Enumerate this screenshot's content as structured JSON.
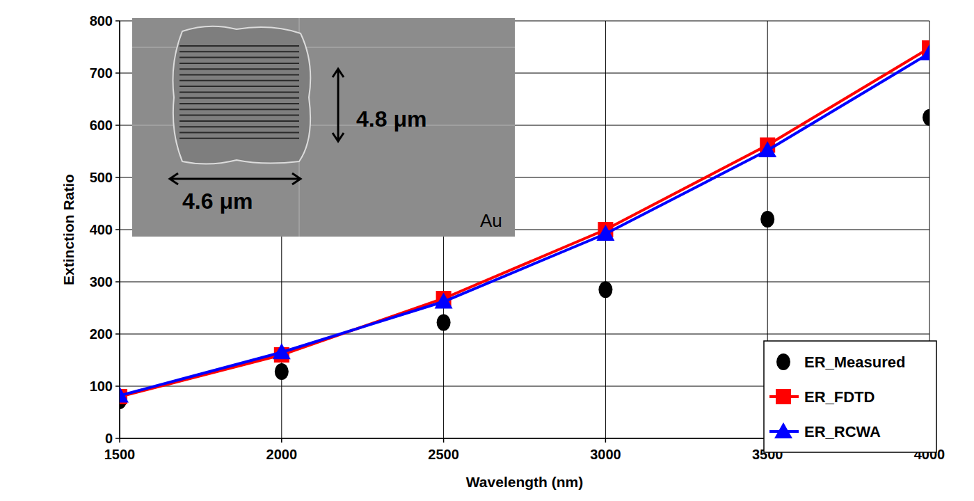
{
  "chart_data": {
    "type": "line",
    "x_label": "Wavelength (nm)",
    "y_label": "Extinction Ratio",
    "x": [
      1500,
      2000,
      2500,
      3000,
      3500,
      4000
    ],
    "series": [
      {
        "name": "ER_Measured",
        "type": "scatter",
        "marker": "circle",
        "color": "#000000",
        "values": [
          72,
          128,
          222,
          285,
          420,
          615
        ]
      },
      {
        "name": "ER_FDTD",
        "type": "line",
        "marker": "square",
        "color": "#ff0000",
        "values": [
          80,
          160,
          268,
          400,
          562,
          748
        ]
      },
      {
        "name": "ER_RCWA",
        "type": "line",
        "marker": "triangle",
        "color": "#0000ff",
        "values": [
          82,
          165,
          262,
          392,
          552,
          738
        ]
      }
    ],
    "xlim": [
      1500,
      4000
    ],
    "xticks": [
      1500,
      2000,
      2500,
      3000,
      3500,
      4000
    ],
    "ylim": [
      0,
      800
    ],
    "yticks": [
      0,
      100,
      200,
      300,
      400,
      500,
      600,
      700,
      800
    ],
    "grid": true,
    "legend": "lower right",
    "annotations": [
      "4.8 μm",
      "4.6 μm",
      "Au"
    ]
  }
}
